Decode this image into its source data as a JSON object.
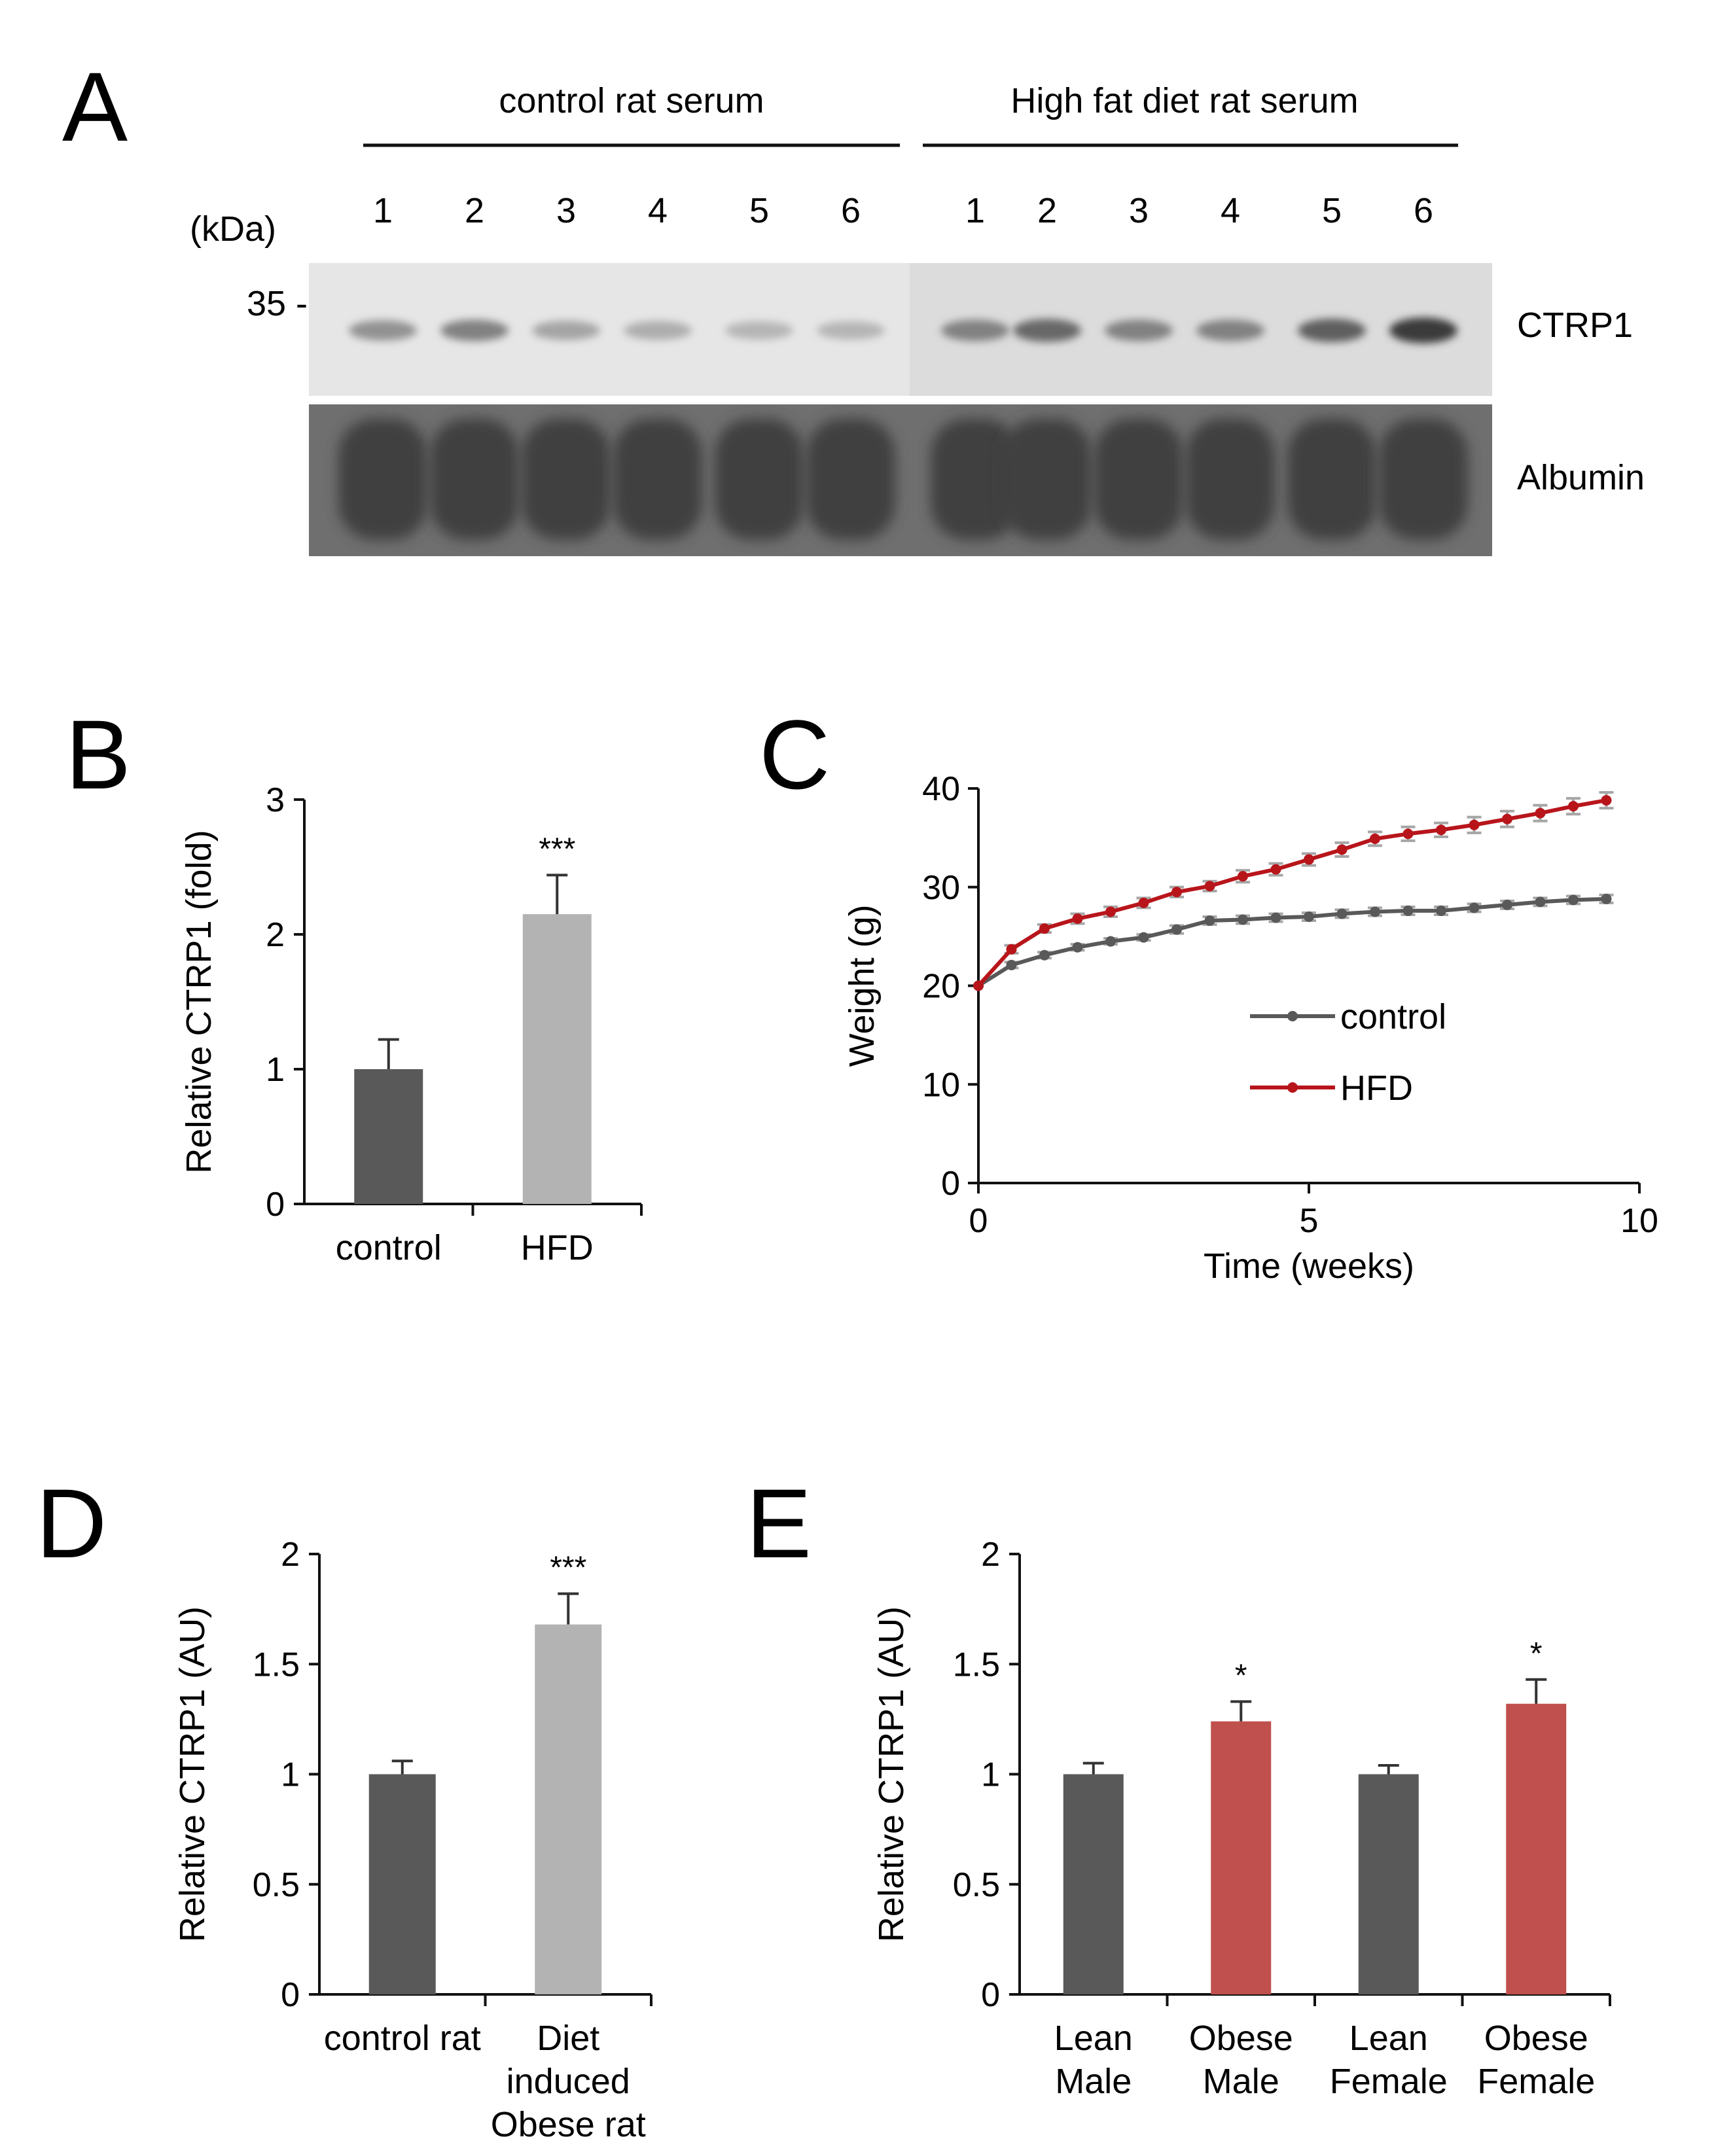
{
  "panels": {
    "A": {
      "letter": "A",
      "groups": [
        "control rat serum",
        "High fat diet rat serum"
      ],
      "lane_labels": [
        "1",
        "2",
        "3",
        "4",
        "5",
        "6",
        "1",
        "2",
        "3",
        "4",
        "5",
        "6"
      ],
      "kda_label": "(kDa)",
      "marker": "35 -",
      "blot_labels": [
        "CTRP1",
        "Albumin"
      ],
      "ctrp1_band_intensity": [
        0.45,
        0.55,
        0.35,
        0.3,
        0.25,
        0.25,
        0.55,
        0.7,
        0.55,
        0.55,
        0.75,
        0.95
      ]
    },
    "B": {
      "letter": "B"
    },
    "C": {
      "letter": "C"
    },
    "D": {
      "letter": "D"
    },
    "E": {
      "letter": "E"
    }
  },
  "colors": {
    "dark_bar": "#595959",
    "light_bar": "#b3b3b3",
    "red_bar": "#c0504d",
    "control_line": "#595959",
    "hfd_line": "#b8151b",
    "error_bar_c": "#a6a6a6"
  },
  "chart_data": [
    {
      "panel": "B",
      "type": "bar",
      "categories": [
        "control",
        "HFD"
      ],
      "values": [
        1.0,
        2.15
      ],
      "errors": [
        0.22,
        0.29
      ],
      "significance": [
        "",
        "***"
      ],
      "ylabel": "Relative CTRP1 (fold)",
      "ylim": [
        0,
        3
      ],
      "yticks": [
        0,
        1,
        2,
        3
      ],
      "grid": false
    },
    {
      "panel": "C",
      "type": "line",
      "xlabel": "Time (weeks)",
      "ylabel": "Weight (g)",
      "xlim": [
        0,
        10
      ],
      "ylim": [
        0,
        40
      ],
      "xticks": [
        0,
        5,
        10
      ],
      "yticks": [
        0,
        10,
        20,
        30,
        40
      ],
      "legend_position": "center-right",
      "grid": false,
      "x": [
        0,
        0.5,
        1,
        1.5,
        2,
        2.5,
        3,
        3.5,
        4,
        4.5,
        5,
        5.5,
        6,
        6.5,
        7,
        7.5,
        8,
        8.5,
        9,
        9.5
      ],
      "series": [
        {
          "name": "control",
          "values": [
            20,
            22.1,
            23.1,
            23.9,
            24.5,
            24.9,
            25.7,
            26.6,
            26.7,
            26.9,
            27.0,
            27.3,
            27.5,
            27.6,
            27.6,
            27.9,
            28.2,
            28.5,
            28.7,
            28.8
          ],
          "errors": [
            0,
            0.3,
            0.3,
            0.3,
            0.3,
            0.3,
            0.4,
            0.4,
            0.4,
            0.4,
            0.4,
            0.4,
            0.4,
            0.4,
            0.4,
            0.4,
            0.4,
            0.4,
            0.4,
            0.4
          ]
        },
        {
          "name": "HFD",
          "values": [
            20,
            23.7,
            25.8,
            26.8,
            27.5,
            28.4,
            29.5,
            30.1,
            31.1,
            31.8,
            32.8,
            33.8,
            34.9,
            35.4,
            35.8,
            36.3,
            36.9,
            37.5,
            38.2,
            38.8
          ],
          "errors": [
            0,
            0.4,
            0.4,
            0.5,
            0.5,
            0.5,
            0.5,
            0.5,
            0.6,
            0.6,
            0.6,
            0.7,
            0.7,
            0.7,
            0.7,
            0.8,
            0.8,
            0.8,
            0.8,
            0.8
          ]
        }
      ]
    },
    {
      "panel": "D",
      "type": "bar",
      "categories": [
        [
          "control rat"
        ],
        [
          "Diet",
          "induced",
          "Obese rat"
        ]
      ],
      "values": [
        1.0,
        1.68
      ],
      "errors": [
        0.06,
        0.14
      ],
      "significance": [
        "",
        "***"
      ],
      "ylabel": "Relative CTRP1 (AU)",
      "ylim": [
        0,
        2
      ],
      "yticks": [
        "0",
        "0.5",
        "1",
        "1.5",
        "2"
      ],
      "grid": false
    },
    {
      "panel": "E",
      "type": "bar",
      "categories": [
        [
          "Lean",
          "Male"
        ],
        [
          "Obese",
          "Male"
        ],
        [
          "Lean",
          "Female"
        ],
        [
          "Obese",
          "Female"
        ]
      ],
      "values": [
        1.0,
        1.24,
        1.0,
        1.32
      ],
      "errors": [
        0.05,
        0.09,
        0.04,
        0.11
      ],
      "significance": [
        "",
        "*",
        "",
        "*"
      ],
      "ylabel": "Relative CTRP1 (AU)",
      "ylim": [
        0,
        2
      ],
      "yticks": [
        "0",
        "0.5",
        "1",
        "1.5",
        "2"
      ],
      "grid": false
    }
  ]
}
